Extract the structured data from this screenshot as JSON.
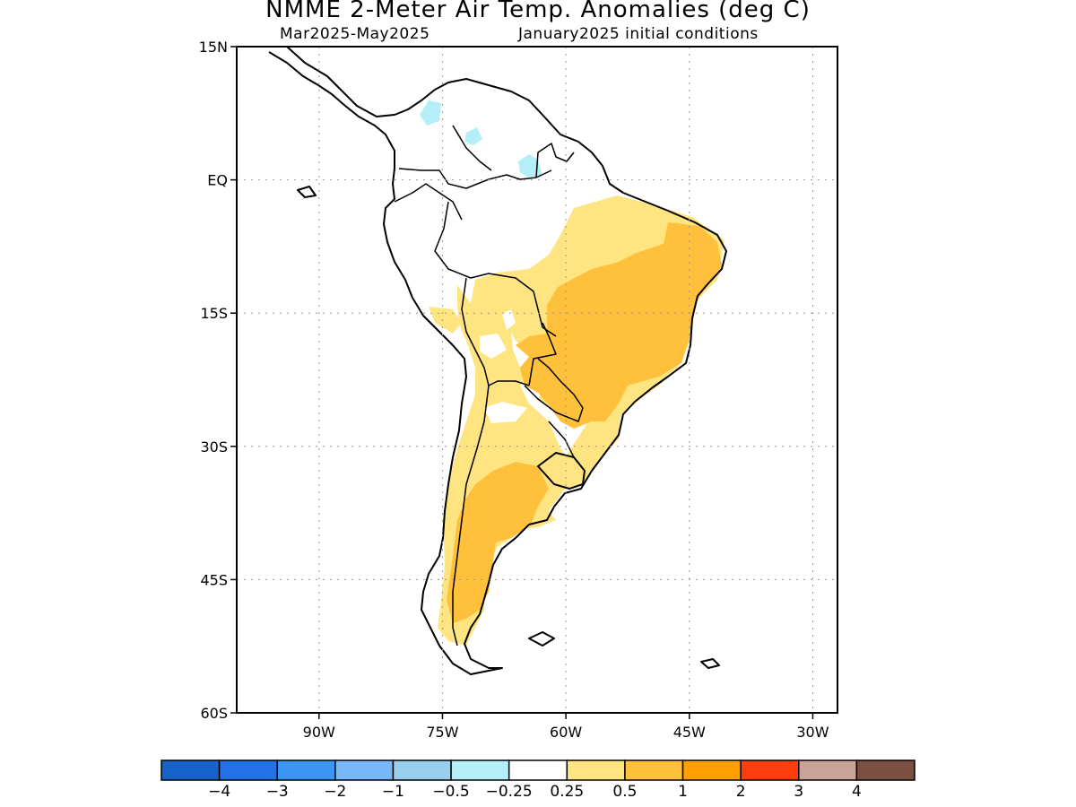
{
  "title": "NMME 2-Meter Air Temp. Anomalies (deg C)",
  "subtitle_period": "Mar2025-May2025",
  "subtitle_init": "January2025 initial conditions",
  "map": {
    "lon_range": [
      -100,
      -27
    ],
    "lat_range": [
      -60,
      15
    ],
    "lat_ticks": [
      {
        "lat": 15,
        "label": "15N"
      },
      {
        "lat": 0,
        "label": "EQ"
      },
      {
        "lat": -15,
        "label": "15S"
      },
      {
        "lat": -30,
        "label": "30S"
      },
      {
        "lat": -45,
        "label": "45S"
      },
      {
        "lat": -60,
        "label": "60S"
      }
    ],
    "lon_ticks": [
      {
        "lon": -90,
        "label": "90W"
      },
      {
        "lon": -75,
        "label": "75W"
      },
      {
        "lon": -60,
        "label": "60W"
      },
      {
        "lon": -45,
        "label": "45W"
      },
      {
        "lon": -30,
        "label": "30W"
      }
    ],
    "grid": true
  },
  "legend": {
    "colors": [
      "#1762c9",
      "#2272e6",
      "#3b95f2",
      "#76b8f8",
      "#98ceee",
      "#b4eef8",
      "#ffffff",
      "#ffe581",
      "#ffc13c",
      "#ffa002",
      "#ff3e0d",
      "#c8a398",
      "#7c5040"
    ],
    "labels": [
      "-4",
      "-3",
      "-2",
      "-1",
      "-0.5",
      "-0.25",
      "0.25",
      "0.5",
      "1",
      "2",
      "3",
      "4"
    ]
  }
}
